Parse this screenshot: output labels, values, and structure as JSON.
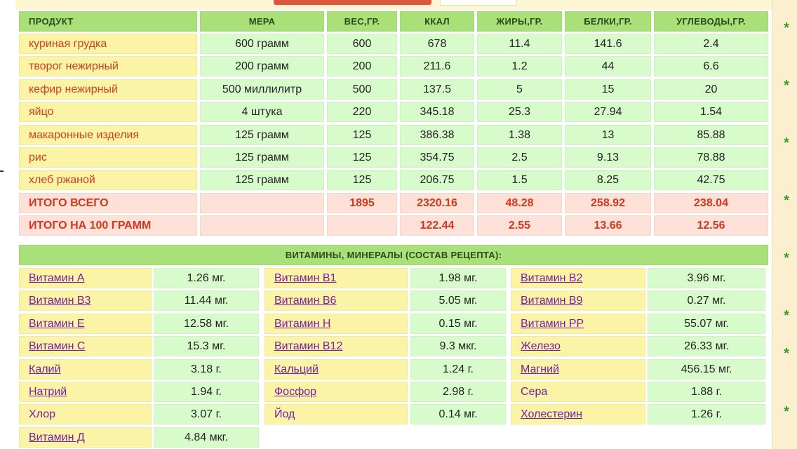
{
  "nutrition": {
    "headers": [
      "ПРОДУКТ",
      "МЕРА",
      "ВЕС,ГР.",
      "ККАЛ",
      "ЖИРЫ,ГР.",
      "БЕЛКИ,ГР.",
      "УГЛЕВОДЫ,ГР."
    ],
    "rows": [
      [
        "куриная грудка",
        "600 грамм",
        "600",
        "678",
        "11.4",
        "141.6",
        "2.4"
      ],
      [
        "творог нежирный",
        "200 грамм",
        "200",
        "211.6",
        "1.2",
        "44",
        "6.6"
      ],
      [
        "кефир нежирный",
        "500 миллилитр",
        "500",
        "137.5",
        "5",
        "15",
        "20"
      ],
      [
        "яйцо",
        "4 штука",
        "220",
        "345.18",
        "25.3",
        "27.94",
        "1.54"
      ],
      [
        "макаронные изделия",
        "125 грамм",
        "125",
        "386.38",
        "1.38",
        "13",
        "85.88"
      ],
      [
        "рис",
        "125 грамм",
        "125",
        "354.75",
        "2.5",
        "9.13",
        "78.88"
      ],
      [
        "хлеб ржаной",
        "125 грамм",
        "125",
        "206.75",
        "1.5",
        "8.25",
        "42.75"
      ]
    ],
    "totals": [
      [
        "ИТОГО ВСЕГО",
        "",
        "1895",
        "2320.16",
        "48.28",
        "258.92",
        "238.04"
      ],
      [
        "ИТОГО НА 100 ГРАММ",
        "",
        "",
        "122.44",
        "2.55",
        "13.66",
        "12.56"
      ]
    ]
  },
  "vitamins": {
    "title": "ВИТАМИНЫ, МИНЕРАЛЫ (СОСТАВ РЕЦЕПТА):",
    "rows": [
      [
        [
          "Витамин A",
          "1.26 мг."
        ],
        [
          "Витамин B1",
          "1.98 мг."
        ],
        [
          "Витамин B2",
          "3.96 мг."
        ]
      ],
      [
        [
          "Витамин B3",
          "11.44 мг."
        ],
        [
          "Витамин B6",
          "5.05 мг."
        ],
        [
          "Витамин B9",
          "0.27 мг."
        ]
      ],
      [
        [
          "Витамин E",
          "12.58 мг."
        ],
        [
          "Витамин H",
          "0.15 мг."
        ],
        [
          "Витамин PP",
          "55.07 мг."
        ]
      ],
      [
        [
          "Витамин C",
          "15.3 мг."
        ],
        [
          "Витамин B12",
          "9.3 мкг."
        ],
        [
          "Железо",
          "26.33 мг."
        ]
      ],
      [
        [
          "Калий",
          "3.18 г."
        ],
        [
          "Кальций",
          "1.24 г."
        ],
        [
          "Магний",
          "456.15 мг."
        ]
      ],
      [
        [
          "Натрий",
          "1.94 г."
        ],
        [
          "Фосфор",
          "2.98 г."
        ],
        [
          "Сера",
          "1.88 г."
        ]
      ],
      [
        [
          "Хлор",
          "3.07 г."
        ],
        [
          "Йод",
          "0.14 мг."
        ],
        [
          "Холестерин",
          "1.26 г."
        ]
      ],
      [
        [
          "Витамин Д",
          "4.84 мкг."
        ]
      ]
    ],
    "plain_names": [
      "Хлор",
      "Йод",
      "Сера"
    ]
  },
  "sidebar": {
    "star_glyph": "*"
  },
  "colors": {
    "header_green": "#a9e07a",
    "product_yellow": "#fbf3a6",
    "value_green": "#d8fbcc",
    "total_pink": "#fde1d9",
    "product_text": "#d4401f",
    "link_purple": "#7a1fa0",
    "star_green": "#37a12a"
  }
}
